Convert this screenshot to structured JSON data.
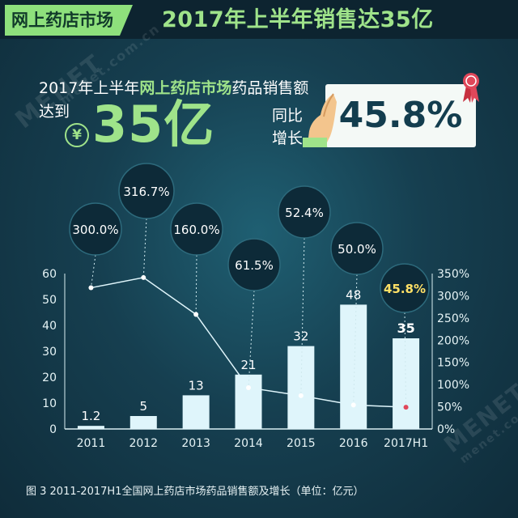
{
  "header": {
    "tag": "网上药店市场",
    "title": "2017年上半年销售达35亿"
  },
  "headline": {
    "line1_prefix": "2017年上半年",
    "line1_highlight": "网上药店市场",
    "line1_suffix": "药品销售额",
    "reach": "达到",
    "yen_symbol": "¥",
    "amount": "35亿",
    "yoy_line1": "同比",
    "yoy_line2": "增长",
    "growth": "45.8%"
  },
  "watermark": {
    "brand": "MENET",
    "domain": "menet.com.cn"
  },
  "caption": "图 3   2011-2017H1全国网上药店市场药品销售额及增长（单位：亿元）",
  "colors": {
    "bar": "#dff5fb",
    "line": "#dff5fb",
    "accent_green": "#9fe38a",
    "bubble": "#0d2a38",
    "last_point": "#e0475a"
  },
  "chart_data": {
    "type": "bar",
    "categories": [
      "2011",
      "2012",
      "2013",
      "2014",
      "2015",
      "2016",
      "2017H1"
    ],
    "series": [
      {
        "type": "bar",
        "axis": "left",
        "values": [
          1.2,
          5,
          13,
          21,
          32,
          48,
          35
        ],
        "labels": [
          "1.2",
          "5",
          "13",
          "21",
          "32",
          "48",
          "35"
        ]
      },
      {
        "type": "line",
        "axis": "right",
        "values": [
          300.0,
          316.7,
          160.0,
          61.5,
          52.4,
          50.0,
          45.8
        ],
        "labels": [
          "300.0%",
          "316.7%",
          "160.0%",
          "61.5%",
          "52.4%",
          "50.0%",
          "45.8%"
        ]
      }
    ],
    "y_left": {
      "min": 0,
      "max": 60,
      "ticks": [
        "0",
        "10",
        "20",
        "30",
        "40",
        "50",
        "60"
      ]
    },
    "y_right": {
      "min": 0,
      "max": 350,
      "ticks": [
        "0%",
        "50%",
        "100%",
        "150%",
        "200%",
        "250%",
        "300%",
        "350%"
      ]
    },
    "line_points_right_axis": [
      318,
      341,
      258,
      93,
      75,
      54,
      49
    ],
    "grid": false,
    "legend": "none"
  }
}
